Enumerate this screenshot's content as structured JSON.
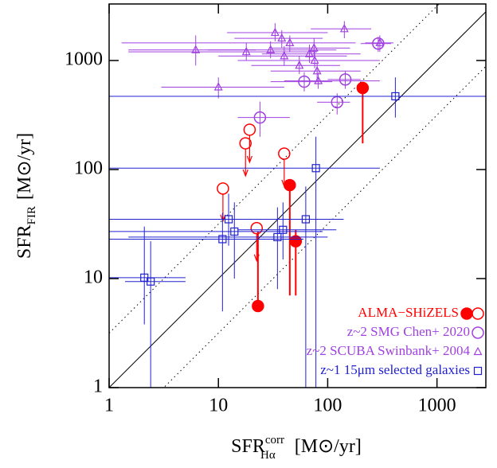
{
  "chart_data": {
    "type": "scatter",
    "xlabel": {
      "main": "SFR",
      "sup": "corr",
      "sub": "Hα",
      "unit": "[M⊙/yr]"
    },
    "ylabel": {
      "main": "SFR",
      "sub": "FIR",
      "unit": "[M⊙/yr]"
    },
    "xlog": true,
    "ylog": true,
    "xlim": [
      1,
      2800
    ],
    "ylim": [
      1,
      3300
    ],
    "xticks": [
      1,
      10,
      100,
      1000
    ],
    "yticks": [
      1,
      10,
      100,
      1000
    ],
    "legend": "bottom-right",
    "reference_lines": [
      {
        "ratio": 1,
        "style": "solid",
        "color": "#000000"
      },
      {
        "ratio": 3.16,
        "style": "dotted",
        "color": "#000000"
      },
      {
        "ratio": 0.316,
        "style": "dotted",
        "color": "#000000"
      }
    ],
    "series": [
      {
        "name": "ALMA−SHiZELS",
        "color": "#ff0000",
        "marker": "circle-filled",
        "upper_limit": false,
        "x": [
          209,
          45,
          51,
          23
        ],
        "values": [
          560,
          72,
          22,
          5.6
        ],
        "x_low": [
          null,
          null,
          null,
          null
        ],
        "x_high": [
          null,
          null,
          null,
          null
        ],
        "y_low": [
          174,
          7,
          7,
          null
        ],
        "y_high": [
          null,
          null,
          28,
          27
        ]
      },
      {
        "color": "#ff0000",
        "marker": "circle",
        "upper_limit": true,
        "x": [
          11,
          17.7,
          19.3,
          22.4,
          40
        ],
        "values": [
          67,
          174,
          232,
          29,
          140
        ],
        "x_low": [
          null,
          null,
          null,
          null,
          null
        ],
        "x_high": [
          null,
          null,
          null,
          null,
          null
        ],
        "y_low": [
          null,
          null,
          null,
          null,
          null
        ],
        "y_high": [
          null,
          null,
          null,
          null,
          null
        ]
      },
      {
        "name": "z~2 SMG Chen+ 2020",
        "color": "#a040e0",
        "marker": "circle",
        "upper_limit": false,
        "x": [
          24,
          61,
          122,
          145,
          290
        ],
        "values": [
          300,
          640,
          415,
          670,
          1430
        ],
        "x_low": [
          15,
          30,
          80,
          100,
          200
        ],
        "x_high": [
          45,
          110,
          160,
          200,
          380
        ],
        "y_low": [
          200,
          520,
          320,
          550,
          1200
        ],
        "y_high": [
          420,
          780,
          500,
          800,
          1650
        ]
      },
      {
        "name": "z~2 SCUBA Swinbank+ 2004",
        "color": "#a040e0",
        "marker": "triangle",
        "upper_limit": false,
        "x": [
          6.2,
          10,
          18,
          30,
          33,
          38,
          40,
          45,
          55,
          68,
          75,
          76,
          80,
          82,
          142,
          300
        ],
        "values": [
          1250,
          570,
          1200,
          1250,
          1800,
          1600,
          1100,
          1450,
          900,
          1150,
          1300,
          1000,
          800,
          650,
          1950,
          1450
        ],
        "x_low": [
          1.5,
          3,
          1.5,
          8,
          12,
          14,
          10,
          1.3,
          20,
          25,
          30,
          15,
          30,
          40,
          70,
          220
        ],
        "x_high": [
          22,
          40,
          80,
          120,
          100,
          90,
          150,
          180,
          130,
          200,
          160,
          300,
          200,
          300,
          250,
          400
        ],
        "y_low": [
          900,
          450,
          1000,
          1050,
          1500,
          1300,
          900,
          1200,
          750,
          950,
          1100,
          850,
          650,
          550,
          1600,
          1200
        ],
        "y_high": [
          1700,
          700,
          1450,
          1500,
          2200,
          1900,
          1350,
          1700,
          1100,
          1400,
          1600,
          1200,
          950,
          780,
          2300,
          1700
        ]
      },
      {
        "name": "z~1 15μm selected galaxies",
        "color": "#2020d0",
        "marker": "square",
        "upper_limit": false,
        "x": [
          2.1,
          2.4,
          10.9,
          12.4,
          14,
          34.7,
          39,
          63,
          78,
          416
        ],
        "values": [
          10.2,
          9.4,
          23,
          35,
          27,
          24,
          28,
          35,
          103,
          470
        ],
        "x_low": [
          1,
          1.4,
          1,
          1,
          1,
          1.5,
          15,
          3,
          1,
          1
        ],
        "x_high": [
          5,
          5,
          60,
          40,
          90,
          100,
          120,
          140,
          300,
          2800
        ],
        "y_low": [
          3.8,
          1,
          5,
          20,
          10,
          8,
          15,
          1,
          1,
          300
        ],
        "y_high": [
          30,
          22,
          40,
          60,
          50,
          45,
          50,
          70,
          200,
          700
        ]
      }
    ]
  }
}
